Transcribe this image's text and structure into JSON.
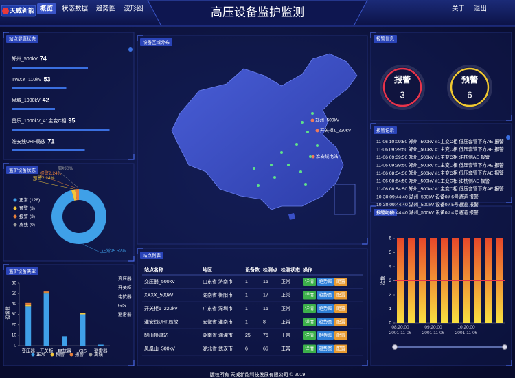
{
  "header": {
    "logo": "天威新能",
    "nav": [
      "概览",
      "状态数据",
      "趋势图",
      "波形图"
    ],
    "title": "高压设备监护监测",
    "links": [
      "关于",
      "退出"
    ]
  },
  "chart_data": [
    {
      "type": "hbar",
      "title": "站点健康状态",
      "categories": [
        "郑州_500kV",
        "TWXY_110kV",
        "泉城_1000kV",
        "昌乐_1000kV_#1主变C相",
        "淮安线UHF局放"
      ],
      "values": [
        74,
        53,
        42,
        95,
        71
      ],
      "value_colors": [
        "#3fd0b0",
        "#f0a830",
        "#f0c830",
        "#3fd0c8",
        "#5fe08a"
      ],
      "color": "#3a6fe0"
    },
    {
      "type": "pie",
      "title": "监护设备状态",
      "categories": [
        "正常",
        "预警",
        "报警",
        "离线"
      ],
      "values": [
        95.52,
        2.24,
        2.24,
        0
      ],
      "value_labels": [
        "95.52%",
        "2.24%",
        "2.24%",
        "0%"
      ],
      "legend_counts": [
        "(128)",
        "(3)",
        "(3)",
        "(0)"
      ],
      "colors": [
        "#3fa0e8",
        "#f3c63a",
        "#e8803a",
        "#9a9a9a"
      ],
      "hole": true
    },
    {
      "type": "stacked_bar",
      "title": "监护设备类型",
      "y_label": "设备数",
      "categories": [
        "变压器",
        "开关柜",
        "电抗器",
        "GIS",
        "避雷器"
      ],
      "series": [
        {
          "name": "正常",
          "color": "#3fa0e8",
          "values": [
            38,
            50,
            9,
            30,
            1
          ]
        },
        {
          "name": "预警",
          "color": "#f3c63a",
          "values": [
            1,
            1,
            0,
            1,
            0
          ]
        },
        {
          "name": "报警",
          "color": "#e8803a",
          "values": [
            2,
            1,
            0,
            0,
            0
          ]
        },
        {
          "name": "离线",
          "color": "#9a9a9a",
          "values": [
            0,
            0,
            0,
            0,
            0
          ]
        }
      ],
      "ylim": [
        0,
        60
      ],
      "yticks": [
        0,
        10,
        20,
        30,
        40,
        50,
        60
      ]
    },
    {
      "type": "bar",
      "title": "报警时段",
      "y_label": "次数",
      "categories": [
        "08:20:00\n2001-11-06",
        null,
        null,
        "09:20:00\n2001-11-06",
        null,
        null,
        "10:20:00\n2001-11-06",
        null,
        null,
        null
      ],
      "values": [
        6,
        6,
        6,
        6,
        6,
        6,
        6,
        6,
        6,
        6
      ],
      "threshold": 3,
      "threshold_color": "#e8344a",
      "ylim": [
        0,
        6
      ],
      "yticks": [
        0,
        1,
        2,
        3,
        4,
        5,
        6
      ]
    }
  ],
  "alarm_info": {
    "title": "报警信息",
    "items": [
      {
        "label": "报警",
        "count": 3,
        "color": "#e8344a"
      },
      {
        "label": "预警",
        "count": 6,
        "color": "#f0c830"
      }
    ]
  },
  "alarm_log": {
    "title": "报警记录",
    "rows": [
      {
        "text": "11-06 10:09:50 郑州_500kV #1主变C相 低压套管下方AE 报警",
        "color": "#f0a040"
      },
      {
        "text": "11-06 09:39:50 郑州_500kV #1主变C相 低压套管下方AE 报警",
        "color": "#f0a040"
      },
      {
        "text": "11-06 09:39:50 郑州_500kV #1主变C相 油枕侧AE 报警",
        "color": "#f0a040"
      },
      {
        "text": "11-06 09:39:50 郑州_500kV #1主变C相 低压套管下方AE 报警",
        "color": "#f0a040"
      },
      {
        "text": "11-06 08:54:50 郑州_500kV #1主变C相 低压套管下方AE 报警",
        "color": "#f0a040"
      },
      {
        "text": "11-06 08:54:50 郑州_500kV #1主变C相 油枕侧AE 报警",
        "color": "#f0a040"
      },
      {
        "text": "11-06 08:54:50 郑州_500kV #1主变C相 低压套管下方AE 报警",
        "color": "#f0a040"
      },
      {
        "text": "10-30 09:44:40 湖州_500kV 设备0# 6号通道 报警",
        "color": "#f04a5a"
      },
      {
        "text": "10-30 09:44:40 湖州_500kV 设备0# 5号通道 报警",
        "color": "#f04a5a"
      },
      {
        "text": "10-30 09:44:40 湖州_500kV 设备0# 4号通道 报警",
        "color": "#f04a5a"
      }
    ]
  },
  "map": {
    "title": "设备区域分布",
    "labels": [
      "郑州_500kV",
      "开关柜1_220kV",
      "淮安线电站"
    ]
  },
  "site_table": {
    "title": "站点列表",
    "columns": [
      "站点名称",
      "地区",
      "设备数",
      "检测点",
      "检测状态",
      "操作"
    ],
    "rows": [
      [
        "变压器_500kV",
        "山东省 济南市",
        1,
        15,
        "正常"
      ],
      [
        "XXXX_500kV",
        "湖南省 衡阳市",
        1,
        17,
        "正常"
      ],
      [
        "开关柜1_220kV",
        "广东省 深圳市",
        1,
        16,
        "正常"
      ],
      [
        "淮安线UHF局放",
        "安徽省 淮南市",
        1,
        8,
        "正常"
      ],
      [
        "韶山换流站",
        "湖南省 湘潭市",
        25,
        75,
        "正常"
      ],
      [
        "凤凰山_500kV",
        "湖北省 武汉市",
        6,
        66,
        "正常"
      ]
    ],
    "actions": [
      "详情",
      "趋势图",
      "配置"
    ],
    "action_colors": [
      "#3cb04a",
      "#2f7fd8",
      "#e89a30"
    ],
    "status_color": "#3fd060"
  },
  "footer": "版权所有 天威新能科技发展有限公司 © 2019"
}
